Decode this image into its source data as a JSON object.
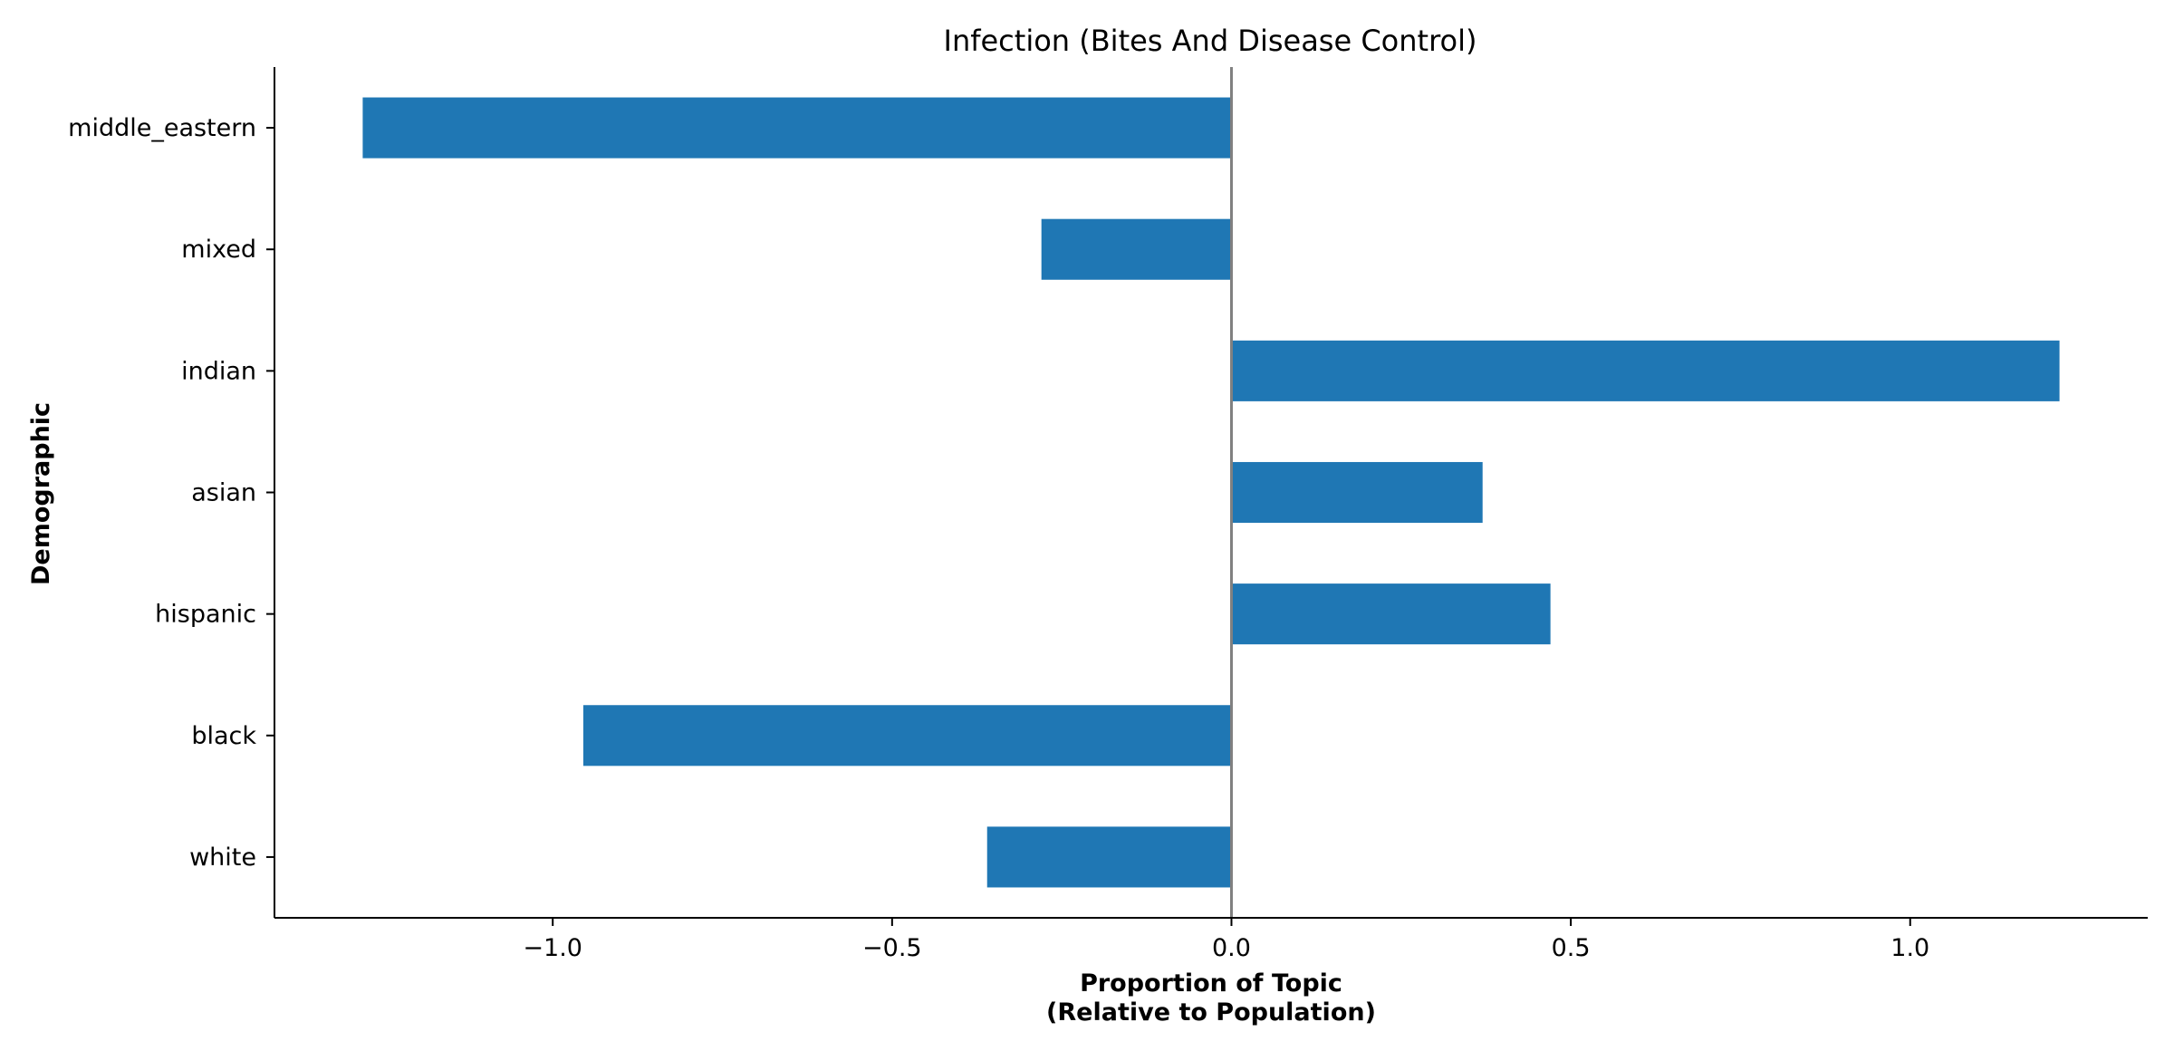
{
  "chart_data": {
    "type": "bar",
    "orientation": "horizontal",
    "title": "Infection (Bites And Disease Control)",
    "xlabel_lines": [
      "Proportion of Topic",
      "(Relative to Population)"
    ],
    "ylabel": "Demographic",
    "categories": [
      "middle_eastern",
      "mixed",
      "indian",
      "asian",
      "hispanic",
      "black",
      "white"
    ],
    "values": [
      -1.28,
      -0.28,
      1.22,
      0.37,
      0.47,
      -0.955,
      -0.36
    ],
    "xlim": [
      -1.41,
      1.35
    ],
    "xticks": [
      -1.0,
      -0.5,
      0.0,
      0.5,
      1.0
    ],
    "xtick_labels": [
      "−1.0",
      "−0.5",
      "0.0",
      "0.5",
      "1.0"
    ],
    "bar_color": "#1f77b4",
    "zero_line_color": "#808080",
    "grid": false,
    "legend": "none"
  }
}
